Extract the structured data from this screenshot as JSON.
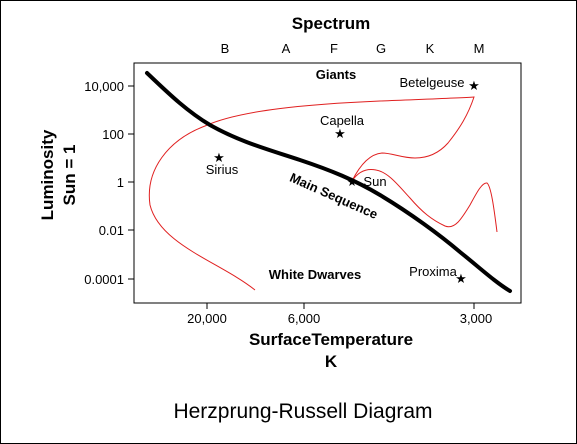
{
  "title": "Herzprung-Russell Diagram",
  "top_axis": {
    "title": "Spectrum",
    "classes": [
      "B",
      "A",
      "F",
      "G",
      "K",
      "M"
    ]
  },
  "x_axis": {
    "title_line1": "SurfaceTemperature",
    "title_line2": "K",
    "ticks": [
      "20,000",
      "6,000",
      "3,000"
    ]
  },
  "y_axis": {
    "title_line1": "Luminosity",
    "title_line2": "Sun = 1",
    "ticks": [
      "10,000",
      "100",
      "1",
      "0.01",
      "0.0001"
    ]
  },
  "regions": {
    "giants": "Giants",
    "main_sequence": "Main Sequence",
    "white_dwarves": "White Dwarves"
  },
  "stars": [
    {
      "name": "Betelgeuse"
    },
    {
      "name": "Capella"
    },
    {
      "name": "Sirius"
    },
    {
      "name": "Sun"
    },
    {
      "name": "Proxima"
    }
  ],
  "colors": {
    "main_sequence": "#000000",
    "evolution_tracks": "#e02020"
  }
}
